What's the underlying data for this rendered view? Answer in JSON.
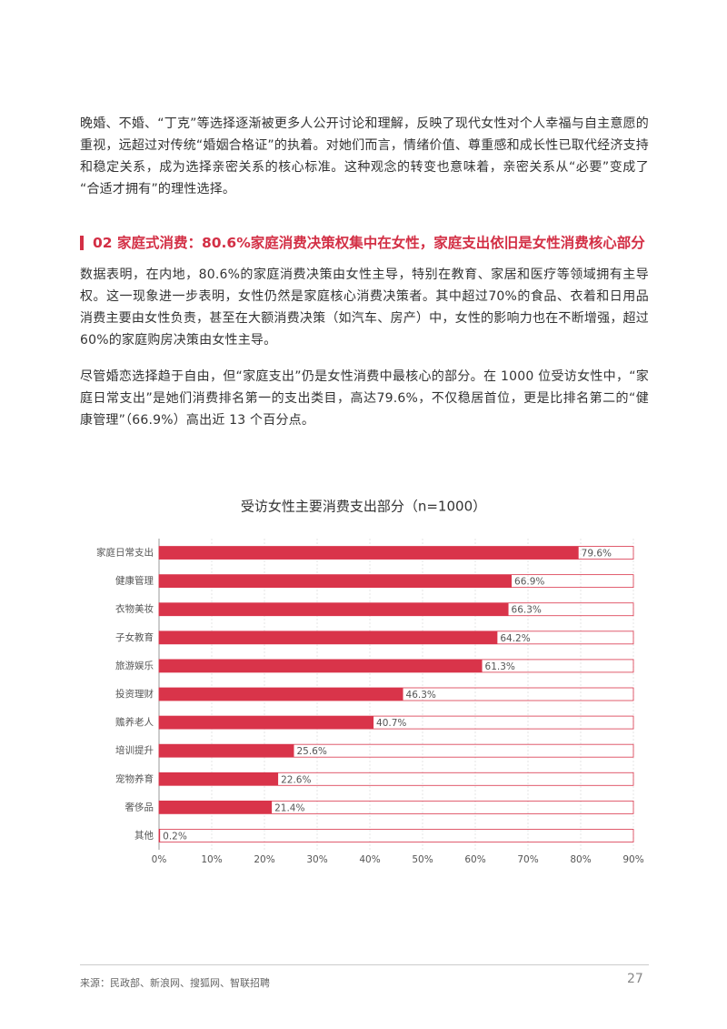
{
  "paragraphs": [
    "晚婚、不婚、“丁克”等选择逐渐被更多人公开讨论和理解，反映了现代女性对个人幸福与自主意愿的重视，远超过对传统“婚姻合格证”的执着。对她们而言，情绪价值、尊重感和成长性已取代经济支持和稳定关系，成为选择亲密关系的核心标准。这种观念的转变也意味着，亲密关系从“必要”变成了“合适才拥有”的理性选择。",
    "数据表明，在内地，80.6%的家庭消费决策由女性主导，特别在教育、家居和医疗等领域拥有主导权。这一现象进一步表明，女性仍然是家庭核心消费决策者。其中超过70%的食品、衣着和日用品消费主要由女性负责，甚至在大额消费决策（如汽车、房产）中，女性的影响力也在不断增强，超过60%的家庭购房决策由女性主导。",
    "尽管婚恋选择趋于自由，但“家庭支出”仍是女性消费中最核心的部分。在 1000 位受访女性中，“家庭日常支出”是她们消费排名第一的支出类目，高达79.6%，不仅稳居首位，更是比排名第二的“健康管理”（66.9%）高出近 13 个百分点。"
  ],
  "heading": "02 家庭式消费：80.6%家庭消费决策权集中在女性，家庭支出依旧是女性消费核心部分",
  "chart_data": {
    "type": "hbar",
    "title": "受访女性主要消费支出部分（n=1000）",
    "categories": [
      "家庭日常支出",
      "健康管理",
      "衣物美妆",
      "子女教育",
      "旅游娱乐",
      "投资理财",
      "赡养老人",
      "培训提升",
      "宠物养育",
      "奢侈品",
      "其他"
    ],
    "values": [
      79.6,
      66.9,
      66.3,
      64.2,
      61.3,
      46.3,
      40.7,
      25.6,
      22.6,
      21.4,
      0.2
    ],
    "value_labels": [
      "79.6%",
      "66.9%",
      "66.3%",
      "64.2%",
      "61.3%",
      "46.3%",
      "40.7%",
      "25.6%",
      "22.6%",
      "21.4%",
      "0.2%"
    ],
    "color": "#d9344a",
    "xlim": [
      0,
      90
    ],
    "xticks": [
      {
        "value": 0,
        "label": "0%"
      },
      {
        "value": 10,
        "label": "10%"
      },
      {
        "value": 20,
        "label": "20%"
      },
      {
        "value": 30,
        "label": "30%"
      },
      {
        "value": 40,
        "label": "40%"
      },
      {
        "value": 50,
        "label": "50%"
      },
      {
        "value": 60,
        "label": "60%"
      },
      {
        "value": 70,
        "label": "70%"
      },
      {
        "value": 80,
        "label": "80%"
      },
      {
        "value": 90,
        "label": "90%"
      }
    ],
    "grid": true
  },
  "footer": {
    "source": "来源：民政部、新浪网、搜狐网、智联招聘",
    "page": "27"
  }
}
